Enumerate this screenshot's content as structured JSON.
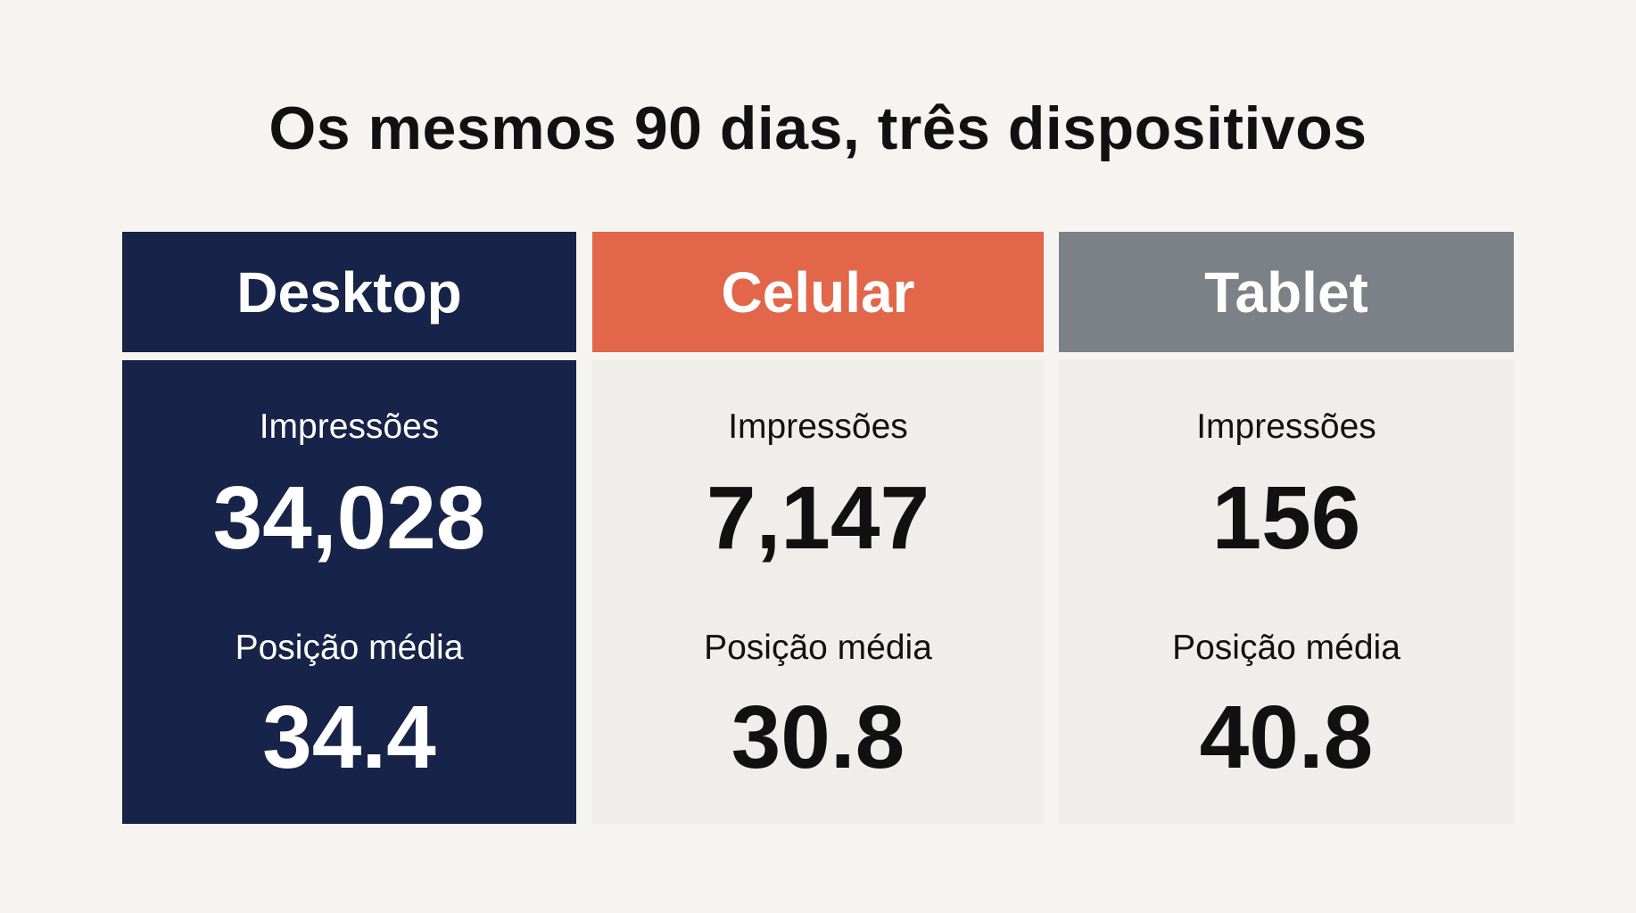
{
  "title": "Os mesmos 90 dias, três dispositivos",
  "colors": {
    "background": "#f5f4f0",
    "desktop": "#172348",
    "mobile": "#e2674a",
    "tablet": "#7b8187",
    "light_panel": "#efeeea"
  },
  "cards": [
    {
      "device": "Desktop",
      "impressions_label": "Impressões",
      "impressions": "34,028",
      "position_label": "Posição média",
      "position": "34.4"
    },
    {
      "device": "Celular",
      "impressions_label": "Impressões",
      "impressions": "7,147",
      "position_label": "Posição média",
      "position": "30.8"
    },
    {
      "device": "Tablet",
      "impressions_label": "Impressões",
      "impressions": "156",
      "position_label": "Posição média",
      "position": "40.8"
    }
  ]
}
